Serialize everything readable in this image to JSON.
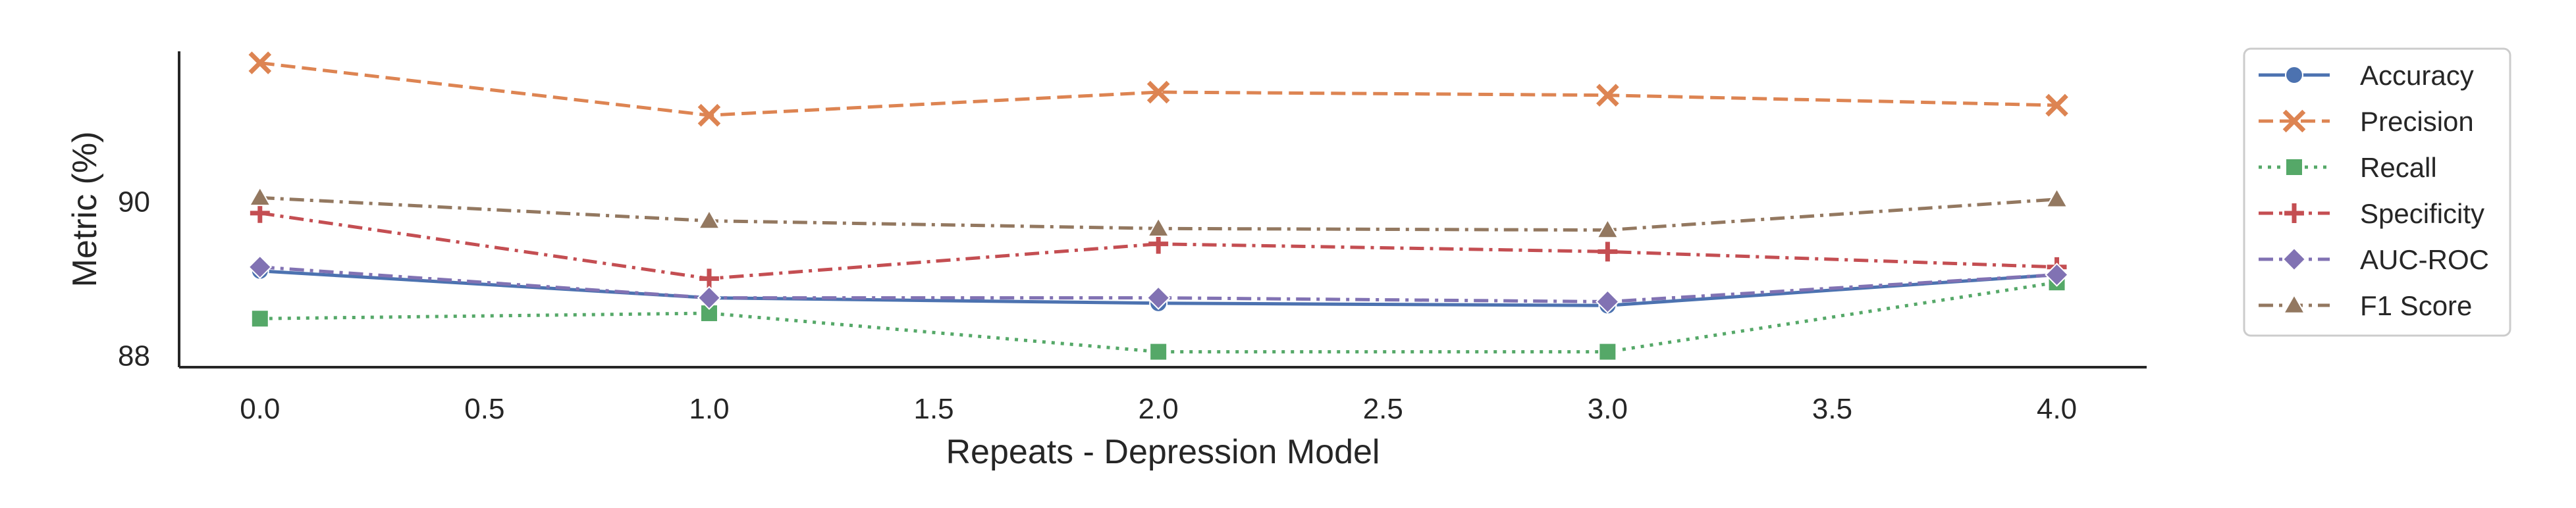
{
  "chart_data": {
    "type": "line",
    "title": "",
    "xlabel": "Repeats - Depression Model",
    "ylabel": "Metric (%)",
    "x": [
      0.0,
      1.0,
      2.0,
      3.0,
      4.0
    ],
    "xlim": [
      -0.18,
      4.2
    ],
    "ylim": [
      87.85,
      91.95
    ],
    "xticks": [
      0.0,
      0.5,
      1.0,
      1.5,
      2.0,
      2.5,
      3.0,
      3.5,
      4.0
    ],
    "xtick_labels": [
      "0.0",
      "0.5",
      "1.0",
      "1.5",
      "2.0",
      "2.5",
      "3.0",
      "3.5",
      "4.0"
    ],
    "yticks": [
      88,
      90
    ],
    "ytick_labels": [
      "88",
      "90"
    ],
    "grid": false,
    "legend_position": "outside-right",
    "series": [
      {
        "name": "Accuracy",
        "color": "#4c72b0",
        "dash": "solid",
        "marker": "circle",
        "values": [
          89.1,
          88.75,
          88.68,
          88.65,
          89.05
        ]
      },
      {
        "name": "Precision",
        "color": "#dd8452",
        "dash": "dashed",
        "marker": "x",
        "values": [
          91.8,
          91.12,
          91.42,
          91.38,
          91.25
        ]
      },
      {
        "name": "Recall",
        "color": "#55a868",
        "dash": "dotted",
        "marker": "square",
        "values": [
          88.48,
          88.55,
          88.05,
          88.05,
          88.95
        ]
      },
      {
        "name": "Specificity",
        "color": "#c44e52",
        "dash": "dashdot",
        "marker": "plus",
        "values": [
          89.85,
          89.0,
          89.45,
          89.35,
          89.15
        ]
      },
      {
        "name": "AUC-ROC",
        "color": "#8172b3",
        "dash": "dashdot",
        "marker": "diamond",
        "values": [
          89.15,
          88.75,
          88.75,
          88.7,
          89.05
        ]
      },
      {
        "name": "F1 Score",
        "color": "#937860",
        "dash": "dashdot",
        "marker": "triangle",
        "values": [
          90.05,
          89.75,
          89.65,
          89.63,
          90.03
        ]
      }
    ]
  }
}
